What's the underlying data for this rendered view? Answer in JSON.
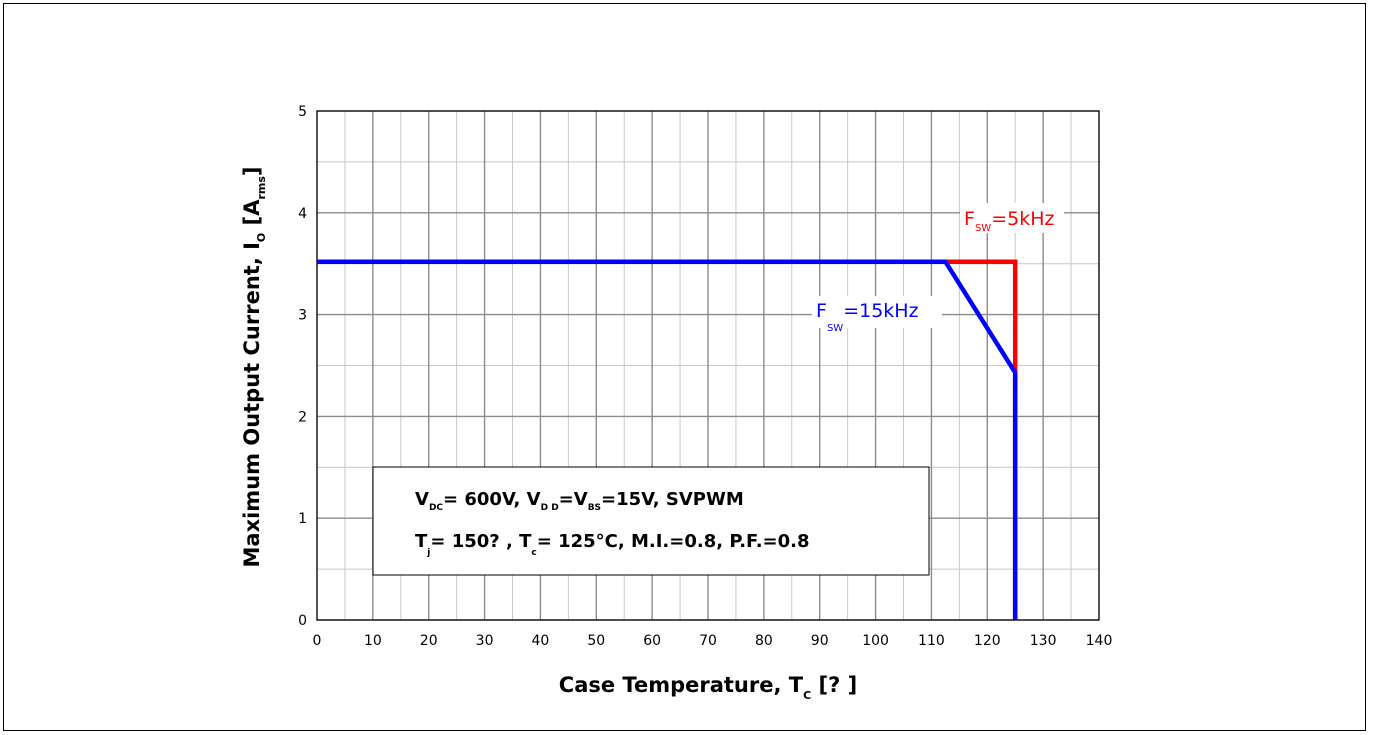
{
  "chart_data": {
    "type": "line",
    "xlim": [
      0,
      140
    ],
    "ylim": [
      0,
      5
    ],
    "x_ticks": [
      "0",
      "10",
      "20",
      "30",
      "40",
      "50",
      "60",
      "70",
      "80",
      "90",
      "100",
      "110",
      "120",
      "130",
      "140"
    ],
    "y_ticks": [
      "0",
      "1",
      "2",
      "3",
      "4",
      "5"
    ],
    "grid": true,
    "ylabel": {
      "main": "Maximum Output Current, I",
      "sub1": "O",
      "mid": " [A",
      "sub2": "rms",
      "end": "]"
    },
    "xlabel": {
      "main": "Case Temperature, T",
      "sub": "C",
      "end": " [? ]"
    },
    "series": [
      {
        "name": "FSW=5kHz",
        "color": "#ff0000",
        "points": [
          [
            0,
            3.52
          ],
          [
            112.5,
            3.52
          ],
          [
            125,
            3.52
          ],
          [
            125,
            2.45
          ],
          [
            125,
            0
          ]
        ]
      },
      {
        "name": "FSW=15kHz",
        "color": "#0000ff",
        "points": [
          [
            0,
            3.52
          ],
          [
            112.5,
            3.52
          ],
          [
            125,
            2.43
          ],
          [
            125,
            0
          ]
        ]
      }
    ],
    "legend_labels": {
      "red": {
        "f": "F",
        "sub": "SW",
        "val": "=5kHz"
      },
      "blue": {
        "f": "F",
        "sub": "SW",
        "val": "=15kHz"
      }
    },
    "annotation": {
      "line1": {
        "v": "V",
        "s1": "DC",
        "a": "= 600V, V",
        "s2": "D D",
        "b": "=V",
        "s3": "BS",
        "c": "=15V, SVPWM"
      },
      "line2": {
        "t": "T",
        "s1": "j",
        "a": "= 150? , T",
        "s2": "c",
        "b": "= 125°C, M.I.=0.8, P.F.=0.8"
      }
    }
  }
}
